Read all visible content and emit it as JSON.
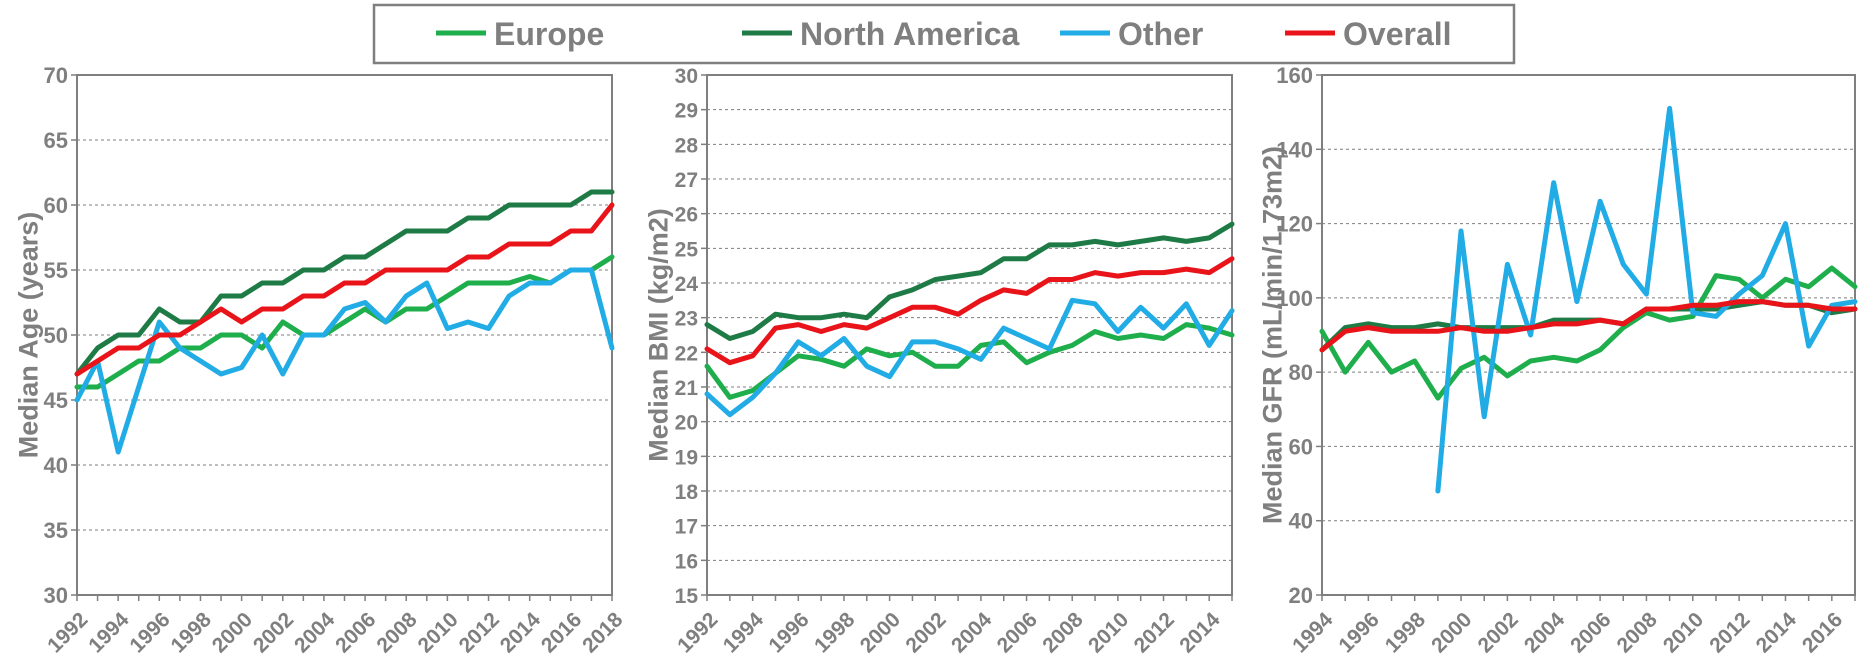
{
  "legend": [
    {
      "label": "Europe",
      "color": "#1fae4c"
    },
    {
      "label": "North America",
      "color": "#1e7b45"
    },
    {
      "label": "Other",
      "color": "#22ace6"
    },
    {
      "label": "Overall",
      "color": "#e8141a"
    }
  ],
  "chart_data": [
    {
      "type": "line",
      "ylabel": "Median Age (years)",
      "ylim": [
        30,
        70
      ],
      "ytick_step": 5,
      "grid": true,
      "x": [
        1992,
        1993,
        1994,
        1995,
        1996,
        1997,
        1998,
        1999,
        2000,
        2001,
        2002,
        2003,
        2004,
        2005,
        2006,
        2007,
        2008,
        2009,
        2010,
        2011,
        2012,
        2013,
        2014,
        2015,
        2016,
        2017,
        2018
      ],
      "xticks": [
        "1992",
        "1994",
        "1996",
        "1998",
        "2000",
        "2002",
        "2004",
        "2006",
        "2008",
        "2010",
        "2012",
        "2014",
        "2016",
        "2018"
      ],
      "series": [
        {
          "name": "Europe",
          "values": [
            46,
            46,
            47,
            48,
            48,
            49,
            49,
            50,
            50,
            49,
            51,
            50,
            50,
            51,
            52,
            51,
            52,
            52,
            53,
            54,
            54,
            54,
            54.5,
            54,
            55,
            55,
            56
          ]
        },
        {
          "name": "North America",
          "values": [
            47,
            49,
            50,
            50,
            52,
            51,
            51,
            53,
            53,
            54,
            54,
            55,
            55,
            56,
            56,
            57,
            58,
            58,
            58,
            59,
            59,
            60,
            60,
            60,
            60,
            61,
            61
          ]
        },
        {
          "name": "Other",
          "values": [
            45,
            48,
            41,
            46,
            51,
            49,
            48,
            47,
            47.5,
            50,
            47,
            50,
            50,
            52,
            52.5,
            51,
            53,
            54,
            50.5,
            51,
            50.5,
            53,
            54,
            54,
            55,
            55,
            49
          ]
        },
        {
          "name": "Overall",
          "values": [
            47,
            48,
            49,
            49,
            50,
            50,
            51,
            52,
            51,
            52,
            52,
            53,
            53,
            54,
            54,
            55,
            55,
            55,
            55,
            56,
            56,
            57,
            57,
            57,
            58,
            58,
            60
          ]
        }
      ]
    },
    {
      "type": "line",
      "ylabel": "Median BMI (kg/m2)",
      "ylim": [
        15,
        30
      ],
      "ytick_step": 1,
      "grid": true,
      "x": [
        1992,
        1993,
        1994,
        1995,
        1996,
        1997,
        1998,
        1999,
        2000,
        2001,
        2002,
        2003,
        2004,
        2005,
        2006,
        2007,
        2008,
        2009,
        2010,
        2011,
        2012,
        2013,
        2014,
        2015
      ],
      "xticks": [
        "1992",
        "1994",
        "1996",
        "1998",
        "2000",
        "2002",
        "2004",
        "2006",
        "2008",
        "2010",
        "2012",
        "2014"
      ],
      "series": [
        {
          "name": "Europe",
          "values": [
            21.6,
            20.7,
            20.9,
            21.4,
            21.9,
            21.8,
            21.6,
            22.1,
            21.9,
            22.0,
            21.6,
            21.6,
            22.2,
            22.3,
            21.7,
            22.0,
            22.2,
            22.6,
            22.4,
            22.5,
            22.4,
            22.8,
            22.7,
            22.5
          ]
        },
        {
          "name": "North America",
          "values": [
            22.8,
            22.4,
            22.6,
            23.1,
            23.0,
            23.0,
            23.1,
            23.0,
            23.6,
            23.8,
            24.1,
            24.2,
            24.3,
            24.7,
            24.7,
            25.1,
            25.1,
            25.2,
            25.1,
            25.2,
            25.3,
            25.2,
            25.3,
            25.7
          ]
        },
        {
          "name": "Other",
          "values": [
            20.8,
            20.2,
            20.7,
            21.4,
            22.3,
            21.9,
            22.4,
            21.6,
            21.3,
            22.3,
            22.3,
            22.1,
            21.8,
            22.7,
            22.4,
            22.1,
            23.5,
            23.4,
            22.6,
            23.3,
            22.7,
            23.4,
            22.2,
            23.2
          ]
        },
        {
          "name": "Overall",
          "values": [
            22.1,
            21.7,
            21.9,
            22.7,
            22.8,
            22.6,
            22.8,
            22.7,
            23.0,
            23.3,
            23.3,
            23.1,
            23.5,
            23.8,
            23.7,
            24.1,
            24.1,
            24.3,
            24.2,
            24.3,
            24.3,
            24.4,
            24.3,
            24.7
          ]
        }
      ]
    },
    {
      "type": "line",
      "ylabel": "Median GFR (mL/min/1.73m2)",
      "ylim": [
        20,
        160
      ],
      "ytick_step": 20,
      "grid": true,
      "x": [
        1994,
        1995,
        1996,
        1997,
        1998,
        1999,
        2000,
        2001,
        2002,
        2003,
        2004,
        2005,
        2006,
        2007,
        2008,
        2009,
        2010,
        2011,
        2012,
        2013,
        2014,
        2015,
        2016,
        2017
      ],
      "xticks": [
        "1994",
        "1996",
        "1998",
        "2000",
        "2002",
        "2004",
        "2006",
        "2008",
        "2010",
        "2012",
        "2014",
        "2016"
      ],
      "series": [
        {
          "name": "Europe",
          "values": [
            91,
            80,
            88,
            80,
            83,
            73,
            81,
            84,
            79,
            83,
            84,
            83,
            86,
            92,
            96,
            94,
            95,
            106,
            105,
            100,
            105,
            103,
            108,
            103
          ]
        },
        {
          "name": "North America",
          "values": [
            86,
            92,
            93,
            92,
            92,
            93,
            92,
            92,
            92,
            92,
            94,
            94,
            94,
            93,
            97,
            97,
            97,
            97,
            98,
            99,
            98,
            98,
            96,
            97
          ]
        },
        {
          "name": "Other",
          "values": [
            null,
            null,
            null,
            null,
            null,
            48,
            118,
            68,
            109,
            90,
            131,
            99,
            126,
            109,
            101,
            151,
            96,
            95,
            101,
            106,
            120,
            87,
            98,
            99
          ]
        },
        {
          "name": "Overall",
          "values": [
            86,
            91,
            92,
            91,
            91,
            91,
            92,
            91,
            91,
            92,
            93,
            93,
            94,
            93,
            97,
            97,
            98,
            98,
            99,
            99,
            98,
            98,
            97,
            97
          ]
        }
      ]
    }
  ]
}
